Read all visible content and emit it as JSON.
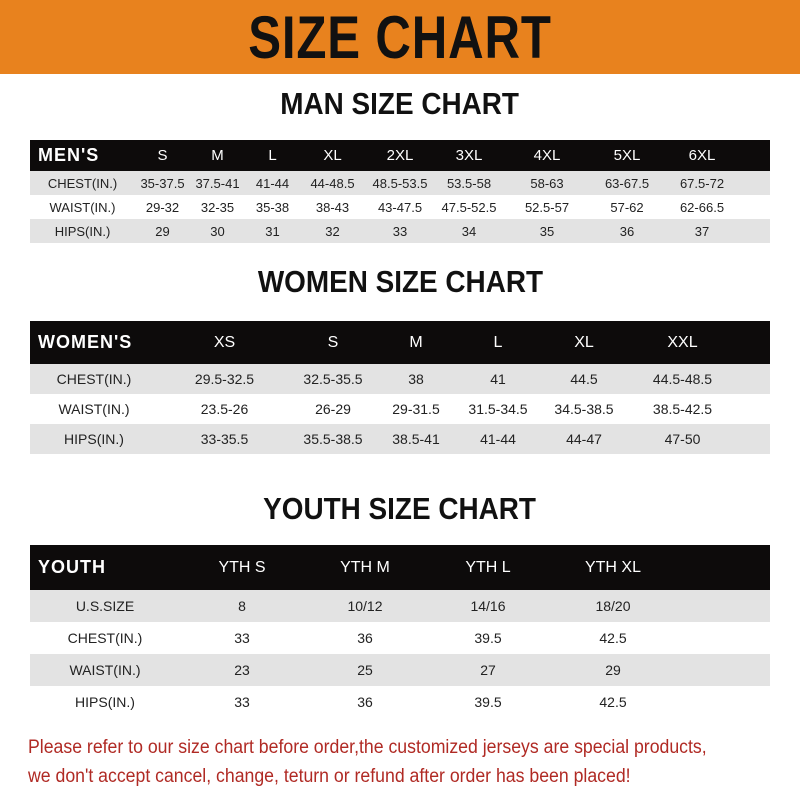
{
  "banner_title": "SIZE CHART",
  "men": {
    "title": "MAN SIZE CHART",
    "header": [
      "MEN'S",
      "S",
      "M",
      "L",
      "XL",
      "2XL",
      "3XL",
      "4XL",
      "5XL",
      "6XL"
    ],
    "rows": [
      [
        "CHEST(IN.)",
        "35-37.5",
        "37.5-41",
        "41-44",
        "44-48.5",
        "48.5-53.5",
        "53.5-58",
        "58-63",
        "63-67.5",
        "67.5-72"
      ],
      [
        "WAIST(IN.)",
        "29-32",
        "32-35",
        "35-38",
        "38-43",
        "43-47.5",
        "47.5-52.5",
        "52.5-57",
        "57-62",
        "62-66.5"
      ],
      [
        "HIPS(IN.)",
        "29",
        "30",
        "31",
        "32",
        "33",
        "34",
        "35",
        "36",
        "37"
      ]
    ]
  },
  "women": {
    "title": "WOMEN SIZE CHART",
    "header": [
      "WOMEN'S",
      "XS",
      "S",
      "M",
      "L",
      "XL",
      "XXL"
    ],
    "rows": [
      [
        "CHEST(IN.)",
        "29.5-32.5",
        "32.5-35.5",
        "38",
        "41",
        "44.5",
        "44.5-48.5"
      ],
      [
        "WAIST(IN.)",
        "23.5-26",
        "26-29",
        "29-31.5",
        "31.5-34.5",
        "34.5-38.5",
        "38.5-42.5"
      ],
      [
        "HIPS(IN.)",
        "33-35.5",
        "35.5-38.5",
        "38.5-41",
        "41-44",
        "44-47",
        "47-50"
      ]
    ]
  },
  "youth": {
    "title": "YOUTH SIZE CHART",
    "header": [
      "YOUTH",
      "YTH S",
      "YTH M",
      "YTH L",
      "YTH XL"
    ],
    "rows": [
      [
        "U.S.SIZE",
        "8",
        "10/12",
        "14/16",
        "18/20"
      ],
      [
        "CHEST(IN.)",
        "33",
        "36",
        "39.5",
        "42.5"
      ],
      [
        "WAIST(IN.)",
        "23",
        "25",
        "27",
        "29"
      ],
      [
        "HIPS(IN.)",
        "33",
        "36",
        "39.5",
        "42.5"
      ]
    ]
  },
  "footer": {
    "line1": "Please refer to our size chart before order,the customized jerseys are special products,",
    "line2": "we don't accept cancel, change, teturn or refund after order has been placed!"
  },
  "colors": {
    "banner": "#e8821e",
    "header_row": "#0d0b0b",
    "stripe": "#e3e3e3",
    "notice": "#b02a24"
  }
}
